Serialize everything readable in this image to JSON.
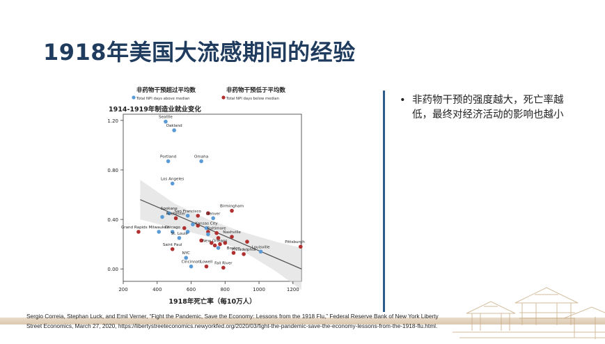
{
  "slide": {
    "title": "1918年美国大流感期间的经验",
    "bullet": "非药物干预的强度越大，死亡率越低，最终对经济活动的影响也越小",
    "citation": "Sergio Correia, Stephan Luck, and Emil Verner, “Fight the Pandemic, Save the Economy: Lessons from the 1918 Flu,” Federal Reserve Bank of New York Liberty Street Economics, March 27, 2020, https://libertystreeteconomics.newyorkfed.org/2020/03/fight-the-pandemic-save-the-economy-lessons-from-the-1918-flu.html."
  },
  "colors": {
    "title": "#1f3b5e",
    "divider": "#2d5c8a",
    "above_median": "#5b9bd5",
    "below_median": "#b03030",
    "fit_line": "#555555",
    "band": "#d9d9d9"
  },
  "chart_data": {
    "type": "scatter",
    "title": "1914-1919年制造业就业变化",
    "xlabel": "1918年死亡率（每10万人）",
    "ylabel": "",
    "xlim": [
      200,
      1250
    ],
    "ylim": [
      -0.1,
      1.25
    ],
    "xticks": [
      "200",
      "400",
      "600",
      "800",
      "1000",
      "1200"
    ],
    "yticks": [
      "0.00",
      "0.40",
      "0.80",
      "1.20"
    ],
    "xtick_values": [
      200,
      400,
      600,
      800,
      1000,
      1200
    ],
    "ytick_values": [
      0,
      0.4,
      0.8,
      1.2
    ],
    "legend": [
      {
        "cn": "非药物干预超过平均数",
        "en": "Total NPI days above median",
        "color": "#5b9bd5"
      },
      {
        "cn": "非药物干预低于平均数",
        "en": "Total NPI days below median",
        "color": "#b03030"
      }
    ],
    "fit_line": {
      "x": [
        300,
        1250
      ],
      "y": [
        0.56,
        0.0
      ]
    },
    "confidence_band": {
      "x": [
        300,
        500,
        700,
        900,
        1100,
        1250
      ],
      "upper": [
        0.72,
        0.53,
        0.4,
        0.3,
        0.22,
        0.17
      ],
      "lower": [
        0.4,
        0.33,
        0.26,
        0.15,
        -0.02,
        -0.17
      ]
    },
    "labeled_points": [
      {
        "name": "Seattle",
        "x": 450,
        "y": 1.19,
        "group": "above"
      },
      {
        "name": "Oakland",
        "x": 500,
        "y": 1.12,
        "group": "above"
      },
      {
        "name": "Portland",
        "x": 465,
        "y": 0.87,
        "group": "above"
      },
      {
        "name": "Omaha",
        "x": 660,
        "y": 0.87,
        "group": "above"
      },
      {
        "name": "Los Angeles",
        "x": 490,
        "y": 0.69,
        "group": "above"
      },
      {
        "name": "Spokane",
        "x": 470,
        "y": 0.45,
        "group": "above"
      },
      {
        "name": "San Francisco",
        "x": 580,
        "y": 0.43,
        "group": "above"
      },
      {
        "name": "Denver",
        "x": 730,
        "y": 0.41,
        "group": "above"
      },
      {
        "name": "Birmingham",
        "x": 840,
        "y": 0.47,
        "group": "below"
      },
      {
        "name": "Rochester",
        "x": 510,
        "y": 0.41,
        "group": "below"
      },
      {
        "name": "Milwaukee",
        "x": 410,
        "y": 0.3,
        "group": "above"
      },
      {
        "name": "Kansas City",
        "x": 690,
        "y": 0.33,
        "group": "above"
      },
      {
        "name": "Chicago",
        "x": 490,
        "y": 0.3,
        "group": "above"
      },
      {
        "name": "Baltimore",
        "x": 750,
        "y": 0.29,
        "group": "below"
      },
      {
        "name": "Nashville",
        "x": 840,
        "y": 0.26,
        "group": "below"
      },
      {
        "name": "St. Louis",
        "x": 530,
        "y": 0.25,
        "group": "above"
      },
      {
        "name": "Pittsburgh",
        "x": 1245,
        "y": 0.18,
        "group": "below"
      },
      {
        "name": "Grand Rapids",
        "x": 290,
        "y": 0.3,
        "group": "below"
      },
      {
        "name": "Saint Paul",
        "x": 490,
        "y": 0.16,
        "group": "below"
      },
      {
        "name": "New Orleans",
        "x": 740,
        "y": 0.19,
        "group": "below"
      },
      {
        "name": "Louisville",
        "x": 1010,
        "y": 0.14,
        "group": "above"
      },
      {
        "name": "Boston",
        "x": 850,
        "y": 0.13,
        "group": "below"
      },
      {
        "name": "NYC",
        "x": 570,
        "y": 0.09,
        "group": "above"
      },
      {
        "name": "Philadelphia",
        "x": 910,
        "y": 0.12,
        "group": "below"
      },
      {
        "name": "Cincinnati",
        "x": 600,
        "y": 0.02,
        "group": "above"
      },
      {
        "name": "Lowell",
        "x": 690,
        "y": 0.02,
        "group": "below"
      },
      {
        "name": "Fall River",
        "x": 790,
        "y": 0.01,
        "group": "below"
      }
    ],
    "extra_points": [
      {
        "x": 640,
        "y": 0.43,
        "group": "below"
      },
      {
        "x": 700,
        "y": 0.45,
        "group": "below"
      },
      {
        "x": 640,
        "y": 0.35,
        "group": "below"
      },
      {
        "x": 700,
        "y": 0.3,
        "group": "below"
      },
      {
        "x": 660,
        "y": 0.23,
        "group": "below"
      },
      {
        "x": 720,
        "y": 0.21,
        "group": "below"
      },
      {
        "x": 770,
        "y": 0.2,
        "group": "below"
      },
      {
        "x": 760,
        "y": 0.25,
        "group": "below"
      },
      {
        "x": 800,
        "y": 0.21,
        "group": "below"
      },
      {
        "x": 930,
        "y": 0.22,
        "group": "below"
      },
      {
        "x": 560,
        "y": 0.33,
        "group": "below"
      },
      {
        "x": 610,
        "y": 0.36,
        "group": "above"
      },
      {
        "x": 580,
        "y": 0.3,
        "group": "above"
      },
      {
        "x": 430,
        "y": 0.42,
        "group": "above"
      },
      {
        "x": 760,
        "y": 0.17,
        "group": "above"
      },
      {
        "x": 700,
        "y": 0.28,
        "group": "above"
      }
    ]
  }
}
